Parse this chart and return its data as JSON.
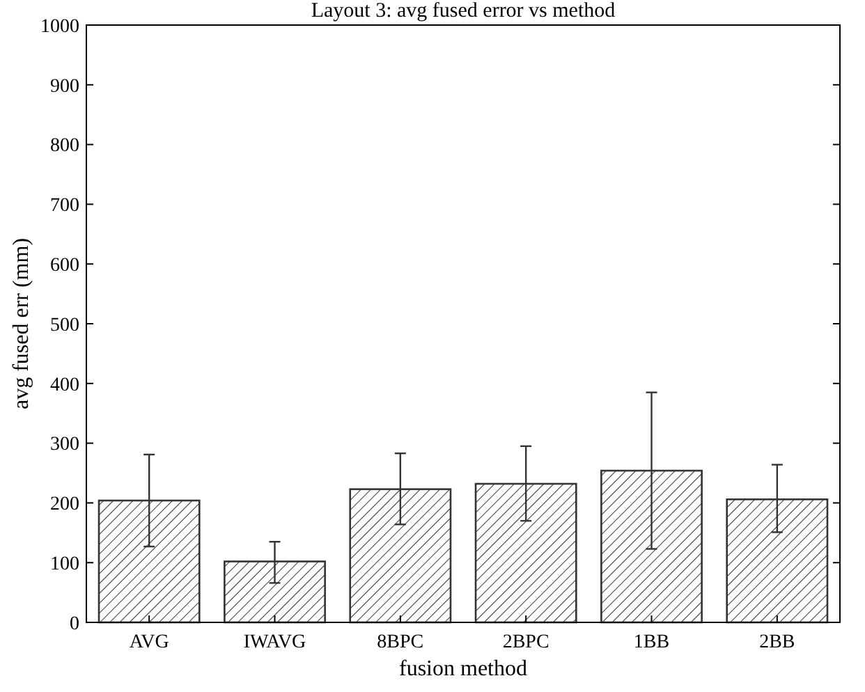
{
  "chart_data": {
    "type": "bar",
    "title": "Layout 3: avg fused error vs method",
    "xlabel": "fusion method",
    "ylabel": "avg fused err (mm)",
    "categories": [
      "AVG",
      "IWAVG",
      "8BPC",
      "2BPC",
      "1BB",
      "2BB"
    ],
    "values": [
      204,
      102,
      223,
      232,
      254,
      206
    ],
    "errors": [
      [
        127,
        281
      ],
      [
        66,
        135
      ],
      [
        164,
        283
      ],
      [
        170,
        295
      ],
      [
        123,
        385
      ],
      [
        151,
        264
      ]
    ],
    "color": "#333333",
    "ylim": [
      0,
      1000
    ],
    "yticks": [
      0,
      100,
      200,
      300,
      400,
      500,
      600,
      700,
      800,
      900,
      1000
    ],
    "grid": false
  }
}
